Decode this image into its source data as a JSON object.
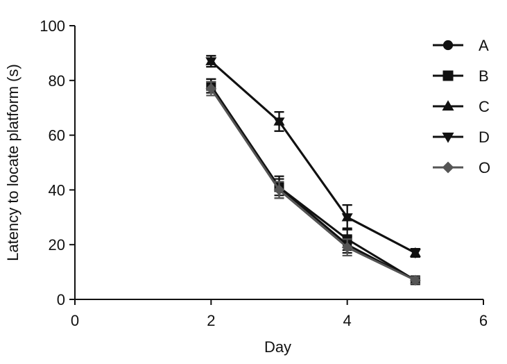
{
  "chart_data": {
    "type": "line",
    "title": "",
    "xlabel": "Day",
    "ylabel": "Latency to locate platform (s)",
    "xlim": [
      0,
      6
    ],
    "ylim": [
      0,
      100
    ],
    "x_ticks": [
      0,
      2,
      4,
      6
    ],
    "y_ticks": [
      0,
      20,
      40,
      60,
      80,
      100
    ],
    "grid": false,
    "legend": "top-right",
    "x": [
      2,
      3,
      4,
      5
    ],
    "series": [
      {
        "name": "A",
        "marker": "circle",
        "color": "#111111",
        "values": [
          78,
          41,
          20,
          7
        ],
        "errors": [
          2.5,
          3,
          3,
          1.2
        ]
      },
      {
        "name": "B",
        "marker": "square",
        "color": "#111111",
        "values": [
          78,
          41,
          22,
          7
        ],
        "errors": [
          2.5,
          4,
          4,
          1.2
        ]
      },
      {
        "name": "C",
        "marker": "triangle-up",
        "color": "#111111",
        "values": [
          87,
          65,
          30,
          17
        ],
        "errors": [
          2,
          3.5,
          4.5,
          1.5
        ]
      },
      {
        "name": "D",
        "marker": "triangle-down",
        "color": "#111111",
        "values": [
          87,
          65,
          30,
          17
        ],
        "errors": [
          2,
          3.5,
          4.5,
          1.5
        ]
      },
      {
        "name": "O",
        "marker": "diamond",
        "color": "#555555",
        "values": [
          77,
          40,
          19,
          7
        ],
        "errors": [
          2.5,
          3,
          3,
          1.2
        ]
      }
    ]
  }
}
